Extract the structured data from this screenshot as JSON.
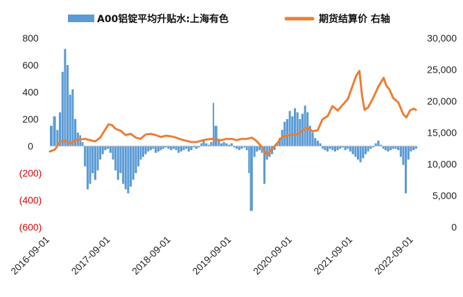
{
  "chart_data": {
    "type": "bar+line",
    "title": "",
    "x_start": "2016-09-01",
    "x_end": "2022-09-15",
    "x_tick_labels": [
      "2016-09-01",
      "2017-09-01",
      "2018-09-01",
      "2019-09-01",
      "2020-09-01",
      "2021-09-01",
      "2022-09-01"
    ],
    "left_axis": {
      "range": [
        -600,
        800
      ],
      "ticks": [
        800,
        600,
        400,
        200,
        0,
        -200,
        -400,
        -600
      ],
      "tick_labels": [
        "800",
        "600",
        "400",
        "200",
        "0",
        "(200)",
        "(400)",
        "(600)"
      ]
    },
    "right_axis": {
      "range": [
        0,
        30000
      ],
      "ticks": [
        30000,
        25000,
        20000,
        15000,
        10000,
        5000,
        0
      ],
      "tick_labels": [
        "30,000",
        "25,000",
        "20,000",
        "15,000",
        "10,000",
        "5,000",
        "0"
      ]
    },
    "grid": false,
    "legend_placement": "top",
    "series": [
      {
        "name": "A00铝锭平均升贴水:上海有色",
        "kind": "bar",
        "axis": "left",
        "color": "#5b9bd5",
        "points": [
          [
            "2016-09-01",
            150
          ],
          [
            "2016-09-20",
            220
          ],
          [
            "2016-10-10",
            120
          ],
          [
            "2016-10-25",
            250
          ],
          [
            "2016-11-10",
            550
          ],
          [
            "2016-11-25",
            720
          ],
          [
            "2016-12-10",
            600
          ],
          [
            "2016-12-25",
            380
          ],
          [
            "2017-01-10",
            420
          ],
          [
            "2017-01-25",
            200
          ],
          [
            "2017-02-10",
            100
          ],
          [
            "2017-02-25",
            80
          ],
          [
            "2017-03-10",
            30
          ],
          [
            "2017-03-25",
            -150
          ],
          [
            "2017-04-10",
            -320
          ],
          [
            "2017-04-25",
            -280
          ],
          [
            "2017-05-10",
            -200
          ],
          [
            "2017-05-25",
            -250
          ],
          [
            "2017-06-10",
            -180
          ],
          [
            "2017-06-25",
            -100
          ],
          [
            "2017-07-10",
            -60
          ],
          [
            "2017-07-25",
            -30
          ],
          [
            "2017-08-10",
            -20
          ],
          [
            "2017-08-25",
            -50
          ],
          [
            "2017-09-10",
            -100
          ],
          [
            "2017-09-25",
            -180
          ],
          [
            "2017-10-10",
            -250
          ],
          [
            "2017-10-25",
            -200
          ],
          [
            "2017-11-10",
            -280
          ],
          [
            "2017-11-25",
            -320
          ],
          [
            "2017-12-10",
            -350
          ],
          [
            "2017-12-25",
            -300
          ],
          [
            "2018-01-10",
            -250
          ],
          [
            "2018-01-25",
            -200
          ],
          [
            "2018-02-10",
            -150
          ],
          [
            "2018-02-25",
            -100
          ],
          [
            "2018-03-10",
            -80
          ],
          [
            "2018-03-25",
            -60
          ],
          [
            "2018-04-10",
            -40
          ],
          [
            "2018-04-25",
            -30
          ],
          [
            "2018-05-10",
            -20
          ],
          [
            "2018-05-25",
            -50
          ],
          [
            "2018-06-10",
            -40
          ],
          [
            "2018-06-25",
            -30
          ],
          [
            "2018-07-10",
            -20
          ],
          [
            "2018-07-25",
            -10
          ],
          [
            "2018-08-10",
            -20
          ],
          [
            "2018-08-25",
            -30
          ],
          [
            "2018-09-10",
            -20
          ],
          [
            "2018-09-25",
            -30
          ],
          [
            "2018-10-10",
            -50
          ],
          [
            "2018-10-25",
            -40
          ],
          [
            "2018-11-10",
            -30
          ],
          [
            "2018-11-25",
            -20
          ],
          [
            "2018-12-10",
            -40
          ],
          [
            "2018-12-25",
            -30
          ],
          [
            "2019-01-10",
            -10
          ],
          [
            "2019-01-25",
            -20
          ],
          [
            "2019-02-10",
            -10
          ],
          [
            "2019-02-25",
            20
          ],
          [
            "2019-03-10",
            40
          ],
          [
            "2019-03-25",
            20
          ],
          [
            "2019-04-10",
            10
          ],
          [
            "2019-04-25",
            30
          ],
          [
            "2019-05-10",
            320
          ],
          [
            "2019-05-20",
            150
          ],
          [
            "2019-06-10",
            50
          ],
          [
            "2019-06-25",
            20
          ],
          [
            "2019-07-10",
            30
          ],
          [
            "2019-07-25",
            20
          ],
          [
            "2019-08-10",
            10
          ],
          [
            "2019-08-25",
            20
          ],
          [
            "2019-09-10",
            -10
          ],
          [
            "2019-09-25",
            -20
          ],
          [
            "2019-10-10",
            -30
          ],
          [
            "2019-10-25",
            -20
          ],
          [
            "2019-11-10",
            -10
          ],
          [
            "2019-11-25",
            -30
          ],
          [
            "2019-12-10",
            -200
          ],
          [
            "2019-12-20",
            -480
          ],
          [
            "2020-01-10",
            -80
          ],
          [
            "2020-01-25",
            -40
          ],
          [
            "2020-02-10",
            -30
          ],
          [
            "2020-02-25",
            -50
          ],
          [
            "2020-03-10",
            -280
          ],
          [
            "2020-03-25",
            -100
          ],
          [
            "2020-04-10",
            -80
          ],
          [
            "2020-04-25",
            -60
          ],
          [
            "2020-05-10",
            -30
          ],
          [
            "2020-05-25",
            20
          ],
          [
            "2020-06-10",
            60
          ],
          [
            "2020-06-25",
            120
          ],
          [
            "2020-07-10",
            180
          ],
          [
            "2020-07-25",
            200
          ],
          [
            "2020-08-10",
            260
          ],
          [
            "2020-08-25",
            220
          ],
          [
            "2020-09-10",
            280
          ],
          [
            "2020-09-25",
            250
          ],
          [
            "2020-10-10",
            200
          ],
          [
            "2020-10-25",
            240
          ],
          [
            "2020-11-10",
            300
          ],
          [
            "2020-11-25",
            250
          ],
          [
            "2020-12-10",
            150
          ],
          [
            "2020-12-25",
            100
          ],
          [
            "2021-01-10",
            60
          ],
          [
            "2021-01-25",
            40
          ],
          [
            "2021-02-10",
            20
          ],
          [
            "2021-02-25",
            -20
          ],
          [
            "2021-03-10",
            -30
          ],
          [
            "2021-03-25",
            -40
          ],
          [
            "2021-04-10",
            -20
          ],
          [
            "2021-04-25",
            -30
          ],
          [
            "2021-05-10",
            -40
          ],
          [
            "2021-05-25",
            -30
          ],
          [
            "2021-06-10",
            -20
          ],
          [
            "2021-06-25",
            -10
          ],
          [
            "2021-07-10",
            -30
          ],
          [
            "2021-07-25",
            -20
          ],
          [
            "2021-08-10",
            -40
          ],
          [
            "2021-08-25",
            -60
          ],
          [
            "2021-09-10",
            -80
          ],
          [
            "2021-09-25",
            -100
          ],
          [
            "2021-10-10",
            -120
          ],
          [
            "2021-10-25",
            -90
          ],
          [
            "2021-11-10",
            -60
          ],
          [
            "2021-11-25",
            -40
          ],
          [
            "2021-12-10",
            -20
          ],
          [
            "2021-12-25",
            -10
          ],
          [
            "2022-01-10",
            20
          ],
          [
            "2022-01-25",
            40
          ],
          [
            "2022-02-10",
            10
          ],
          [
            "2022-02-25",
            -20
          ],
          [
            "2022-03-10",
            -30
          ],
          [
            "2022-03-25",
            -40
          ],
          [
            "2022-04-10",
            -30
          ],
          [
            "2022-04-25",
            -20
          ],
          [
            "2022-05-10",
            -20
          ],
          [
            "2022-05-25",
            -30
          ],
          [
            "2022-06-10",
            -80
          ],
          [
            "2022-06-25",
            -140
          ],
          [
            "2022-07-10",
            -350
          ],
          [
            "2022-07-25",
            -100
          ],
          [
            "2022-08-10",
            -40
          ],
          [
            "2022-08-25",
            -30
          ],
          [
            "2022-09-10",
            -20
          ]
        ]
      },
      {
        "name": "期货结算价 右轴",
        "kind": "line",
        "axis": "right",
        "color": "#ed7d31",
        "points": [
          [
            "2016-09-01",
            12000
          ],
          [
            "2016-10-01",
            12300
          ],
          [
            "2016-11-01",
            13500
          ],
          [
            "2016-12-01",
            13800
          ],
          [
            "2017-01-01",
            13200
          ],
          [
            "2017-02-01",
            13800
          ],
          [
            "2017-03-01",
            13900
          ],
          [
            "2017-04-01",
            14000
          ],
          [
            "2017-05-01",
            13800
          ],
          [
            "2017-06-01",
            13600
          ],
          [
            "2017-07-01",
            14200
          ],
          [
            "2017-08-01",
            15500
          ],
          [
            "2017-08-20",
            16300
          ],
          [
            "2017-09-10",
            16200
          ],
          [
            "2017-10-01",
            15600
          ],
          [
            "2017-11-01",
            15300
          ],
          [
            "2017-12-01",
            14600
          ],
          [
            "2018-01-01",
            14800
          ],
          [
            "2018-02-01",
            14200
          ],
          [
            "2018-03-01",
            14000
          ],
          [
            "2018-04-01",
            14700
          ],
          [
            "2018-05-01",
            14800
          ],
          [
            "2018-06-01",
            14600
          ],
          [
            "2018-07-01",
            14300
          ],
          [
            "2018-08-01",
            14500
          ],
          [
            "2018-09-01",
            14400
          ],
          [
            "2018-10-01",
            14200
          ],
          [
            "2018-11-01",
            13900
          ],
          [
            "2018-12-01",
            13700
          ],
          [
            "2019-01-01",
            13500
          ],
          [
            "2019-02-01",
            13500
          ],
          [
            "2019-03-01",
            13700
          ],
          [
            "2019-04-01",
            13900
          ],
          [
            "2019-05-01",
            14000
          ],
          [
            "2019-06-01",
            13900
          ],
          [
            "2019-07-01",
            13800
          ],
          [
            "2019-08-01",
            14000
          ],
          [
            "2019-09-01",
            14000
          ],
          [
            "2019-10-01",
            13800
          ],
          [
            "2019-11-01",
            14000
          ],
          [
            "2019-12-01",
            14000
          ],
          [
            "2020-01-01",
            14200
          ],
          [
            "2020-02-01",
            13600
          ],
          [
            "2020-03-01",
            12700
          ],
          [
            "2020-04-01",
            11400
          ],
          [
            "2020-05-01",
            12400
          ],
          [
            "2020-06-01",
            13300
          ],
          [
            "2020-07-01",
            14300
          ],
          [
            "2020-08-01",
            14500
          ],
          [
            "2020-09-01",
            14700
          ],
          [
            "2020-10-01",
            14700
          ],
          [
            "2020-11-01",
            15300
          ],
          [
            "2020-12-01",
            15800
          ],
          [
            "2021-01-01",
            15200
          ],
          [
            "2021-02-01",
            15400
          ],
          [
            "2021-03-01",
            17100
          ],
          [
            "2021-04-01",
            17600
          ],
          [
            "2021-05-01",
            19200
          ],
          [
            "2021-06-01",
            18500
          ],
          [
            "2021-07-01",
            19400
          ],
          [
            "2021-08-01",
            20300
          ],
          [
            "2021-09-01",
            22600
          ],
          [
            "2021-09-20",
            24000
          ],
          [
            "2021-10-10",
            24800
          ],
          [
            "2021-10-25",
            21000
          ],
          [
            "2021-11-10",
            18600
          ],
          [
            "2021-12-01",
            19000
          ],
          [
            "2022-01-01",
            20500
          ],
          [
            "2022-02-01",
            22300
          ],
          [
            "2022-03-05",
            23700
          ],
          [
            "2022-03-20",
            22500
          ],
          [
            "2022-04-10",
            21800
          ],
          [
            "2022-05-01",
            20500
          ],
          [
            "2022-06-01",
            19800
          ],
          [
            "2022-07-01",
            17900
          ],
          [
            "2022-07-20",
            17400
          ],
          [
            "2022-08-10",
            18500
          ],
          [
            "2022-09-01",
            18800
          ],
          [
            "2022-09-15",
            18600
          ]
        ]
      }
    ]
  }
}
